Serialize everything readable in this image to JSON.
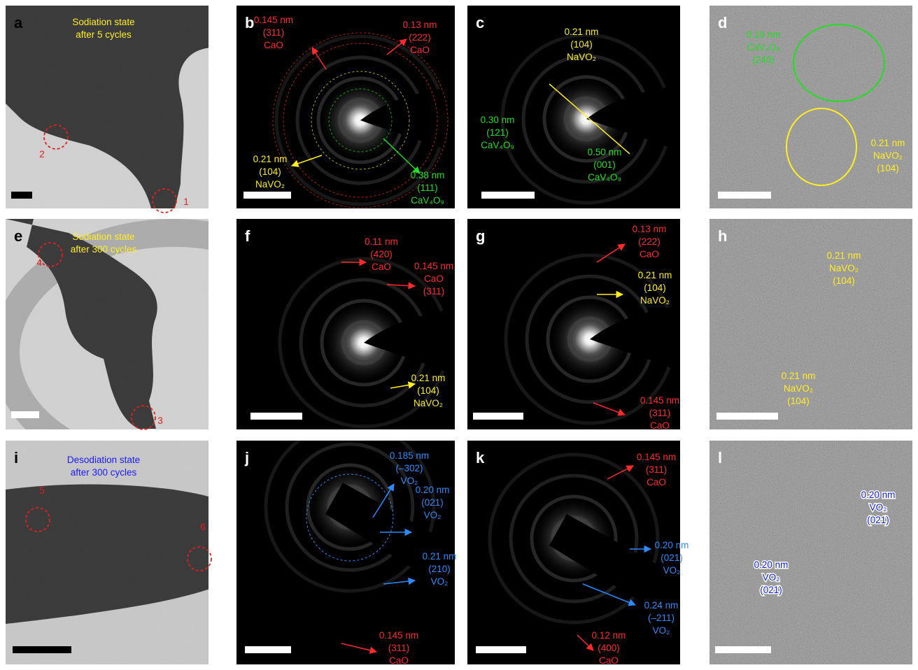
{
  "panels": [
    {
      "label": "a",
      "notes": [
        {
          "lines": [
            "Sodiation state",
            "after 5 cycles"
          ],
          "color": "#ffee22"
        }
      ],
      "markers": [
        "1",
        "2"
      ]
    },
    {
      "label": "b",
      "notes": [
        {
          "lines": [
            "0.145 nm",
            "(311)",
            "CaO"
          ],
          "color": "#ff2a2a"
        },
        {
          "lines": [
            "0.13 nm",
            "(222)",
            "CaO"
          ],
          "color": "#ff2a2a"
        },
        {
          "lines": [
            "0.21 nm",
            "(104)",
            "NaVO₂"
          ],
          "color": "#ffee22"
        },
        {
          "lines": [
            "0.38 nm",
            "(111)",
            "CaV₄O₉"
          ],
          "color": "#22dd22"
        }
      ]
    },
    {
      "label": "c",
      "notes": [
        {
          "lines": [
            "0.21 nm",
            "(104)",
            "NaVO₂"
          ],
          "color": "#ffee22"
        },
        {
          "lines": [
            "0.30 nm",
            "(121)",
            "CaV₄O₉"
          ],
          "color": "#22dd22"
        },
        {
          "lines": [
            "0.50 nm",
            "(001)",
            "CaV₄O₉"
          ],
          "color": "#22dd22"
        }
      ]
    },
    {
      "label": "d",
      "notes": [
        {
          "lines": [
            "0.19 nm",
            "CaV₄O₉",
            "(240)"
          ],
          "color": "#22dd22"
        },
        {
          "lines": [
            "0.21 nm",
            "NaVO₂",
            "(104)"
          ],
          "color": "#ffee22"
        }
      ]
    },
    {
      "label": "e",
      "notes": [
        {
          "lines": [
            "Sodiation state",
            "after 300 cycles"
          ],
          "color": "#ffee22"
        }
      ],
      "markers": [
        "4",
        "3"
      ]
    },
    {
      "label": "f",
      "notes": [
        {
          "lines": [
            "0.11 nm",
            "(420)",
            "CaO"
          ],
          "color": "#ff2a2a"
        },
        {
          "lines": [
            "0.145 nm",
            "CaO",
            "(311)"
          ],
          "color": "#ff2a2a"
        },
        {
          "lines": [
            "0.21 nm",
            "(104)",
            "NaVO₂"
          ],
          "color": "#ffee22"
        }
      ]
    },
    {
      "label": "g",
      "notes": [
        {
          "lines": [
            "0.13 nm",
            "(222)",
            "CaO"
          ],
          "color": "#ff2a2a"
        },
        {
          "lines": [
            "0.21 nm",
            "(104)",
            "NaVO₂"
          ],
          "color": "#ffee22"
        },
        {
          "lines": [
            "0.145 nm",
            "(311)",
            "CaO"
          ],
          "color": "#ff2a2a"
        }
      ]
    },
    {
      "label": "h",
      "notes": [
        {
          "lines": [
            "0.21 nm",
            "NaVO₂",
            "(104)"
          ],
          "color": "#ffee22"
        },
        {
          "lines": [
            "0.21 nm",
            "NaVO₂",
            "(104)"
          ],
          "color": "#ffee22"
        }
      ]
    },
    {
      "label": "i",
      "notes": [
        {
          "lines": [
            "Desodiation state",
            "after 300 cycles"
          ],
          "color": "#1a1aff"
        }
      ],
      "markers": [
        "5",
        "6"
      ]
    },
    {
      "label": "j",
      "notes": [
        {
          "lines": [
            "0.185 nm",
            "(–302)",
            "VO₂"
          ],
          "color": "#2a8cff"
        },
        {
          "lines": [
            "0.20 nm",
            "(021)",
            "VO₂"
          ],
          "color": "#2a8cff"
        },
        {
          "lines": [
            "0.21 nm",
            "(210)",
            "VO₂"
          ],
          "color": "#2a8cff"
        },
        {
          "lines": [
            "0.145 nm",
            "(311)",
            "CaO"
          ],
          "color": "#ff2a2a"
        }
      ]
    },
    {
      "label": "k",
      "notes": [
        {
          "lines": [
            "0.145 nm",
            "(311)",
            "CaO"
          ],
          "color": "#ff2a2a"
        },
        {
          "lines": [
            "0.20 nm",
            "(021)",
            "VO₂"
          ],
          "color": "#2a8cff"
        },
        {
          "lines": [
            "0.24 nm",
            "(–211)",
            "VO₂"
          ],
          "color": "#2a8cff"
        },
        {
          "lines": [
            "0.12 nm",
            "(400)",
            "CaO"
          ],
          "color": "#ff2a2a"
        }
      ]
    },
    {
      "label": "l",
      "notes": [
        {
          "lines": [
            "0.20 nm",
            "VO₂",
            "(021)"
          ],
          "color": "#1020e0"
        },
        {
          "lines": [
            "0.20 nm",
            "VO₂",
            "(021)"
          ],
          "color": "#1020e0"
        }
      ]
    }
  ]
}
